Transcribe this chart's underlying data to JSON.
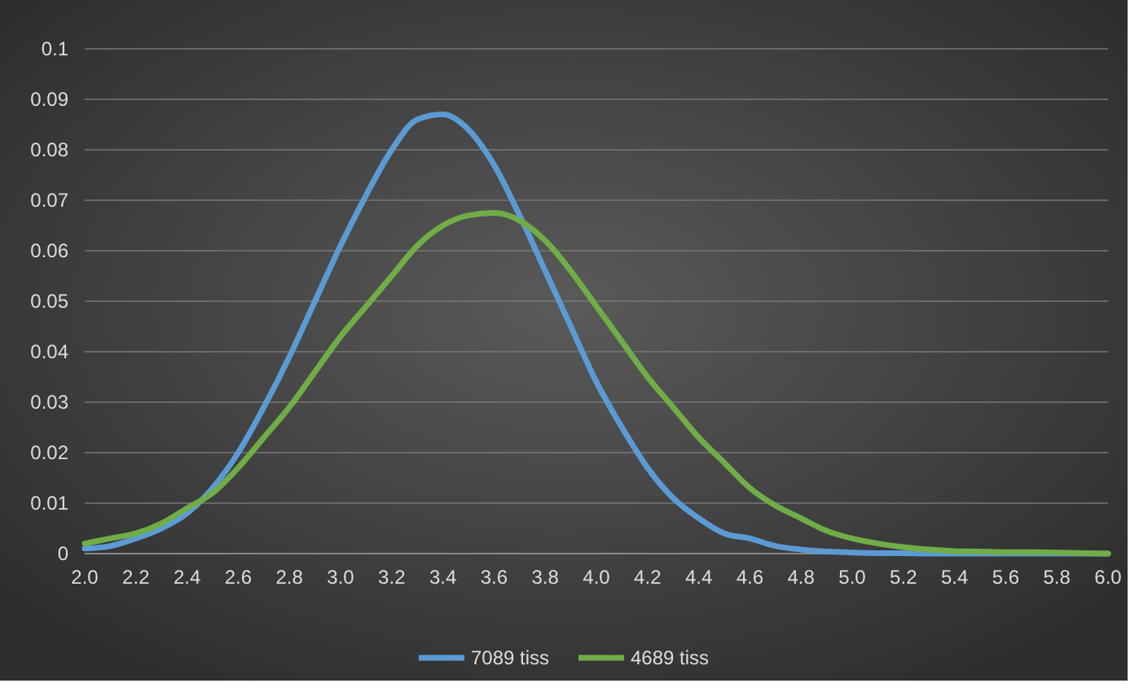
{
  "chart_data": {
    "type": "line",
    "x": [
      2.0,
      2.1,
      2.2,
      2.3,
      2.4,
      2.5,
      2.6,
      2.7,
      2.8,
      2.9,
      3.0,
      3.1,
      3.2,
      3.3,
      3.4,
      3.5,
      3.6,
      3.7,
      3.8,
      3.9,
      4.0,
      4.1,
      4.2,
      4.3,
      4.4,
      4.5,
      4.6,
      4.7,
      4.8,
      4.9,
      5.0,
      5.1,
      5.2,
      5.3,
      5.4,
      5.5,
      5.6,
      5.7,
      5.8,
      5.9,
      6.0
    ],
    "series": [
      {
        "name": "7089 tiss",
        "color": "#5b9bd5",
        "values": [
          0.001,
          0.0015,
          0.003,
          0.005,
          0.008,
          0.013,
          0.02,
          0.029,
          0.039,
          0.05,
          0.061,
          0.071,
          0.08,
          0.086,
          0.087,
          0.084,
          0.077,
          0.067,
          0.056,
          0.045,
          0.034,
          0.025,
          0.017,
          0.011,
          0.007,
          0.004,
          0.003,
          0.0015,
          0.0008,
          0.0004,
          0.0002,
          0.0001,
          0.0001,
          0,
          0,
          0,
          0,
          0,
          0,
          0,
          0
        ]
      },
      {
        "name": "4689 tiss",
        "color": "#70ad47",
        "values": [
          0.002,
          0.003,
          0.004,
          0.006,
          0.009,
          0.012,
          0.017,
          0.023,
          0.029,
          0.036,
          0.043,
          0.049,
          0.055,
          0.061,
          0.065,
          0.067,
          0.0675,
          0.066,
          0.062,
          0.056,
          0.049,
          0.042,
          0.035,
          0.029,
          0.023,
          0.018,
          0.013,
          0.0095,
          0.007,
          0.0045,
          0.003,
          0.002,
          0.0013,
          0.0008,
          0.0005,
          0.0004,
          0.0003,
          0.0003,
          0.0002,
          0.0001,
          0
        ]
      }
    ],
    "xlim": [
      2.0,
      6.0
    ],
    "xticks": [
      {
        "value": 2.0,
        "label": "2.0"
      },
      {
        "value": 2.2,
        "label": "2.2"
      },
      {
        "value": 2.4,
        "label": "2.4"
      },
      {
        "value": 2.6,
        "label": "2.6"
      },
      {
        "value": 2.8,
        "label": "2.8"
      },
      {
        "value": 3.0,
        "label": "3.0"
      },
      {
        "value": 3.2,
        "label": "3.2"
      },
      {
        "value": 3.4,
        "label": "3.4"
      },
      {
        "value": 3.6,
        "label": "3.6"
      },
      {
        "value": 3.8,
        "label": "3.8"
      },
      {
        "value": 4.0,
        "label": "4.0"
      },
      {
        "value": 4.2,
        "label": "4.2"
      },
      {
        "value": 4.4,
        "label": "4.4"
      },
      {
        "value": 4.6,
        "label": "4.6"
      },
      {
        "value": 4.8,
        "label": "4.8"
      },
      {
        "value": 5.0,
        "label": "5.0"
      },
      {
        "value": 5.2,
        "label": "5.2"
      },
      {
        "value": 5.4,
        "label": "5.4"
      },
      {
        "value": 5.6,
        "label": "5.6"
      },
      {
        "value": 5.8,
        "label": "5.8"
      },
      {
        "value": 6.0,
        "label": "6.0"
      }
    ],
    "ylim": [
      0,
      0.1
    ],
    "yticks": [
      0,
      0.01,
      0.02,
      0.03,
      0.04,
      0.05,
      0.06,
      0.07,
      0.08,
      0.09,
      0.1
    ],
    "grid": "y",
    "legend": "bottom",
    "marker": "none",
    "line_style": "solid"
  }
}
